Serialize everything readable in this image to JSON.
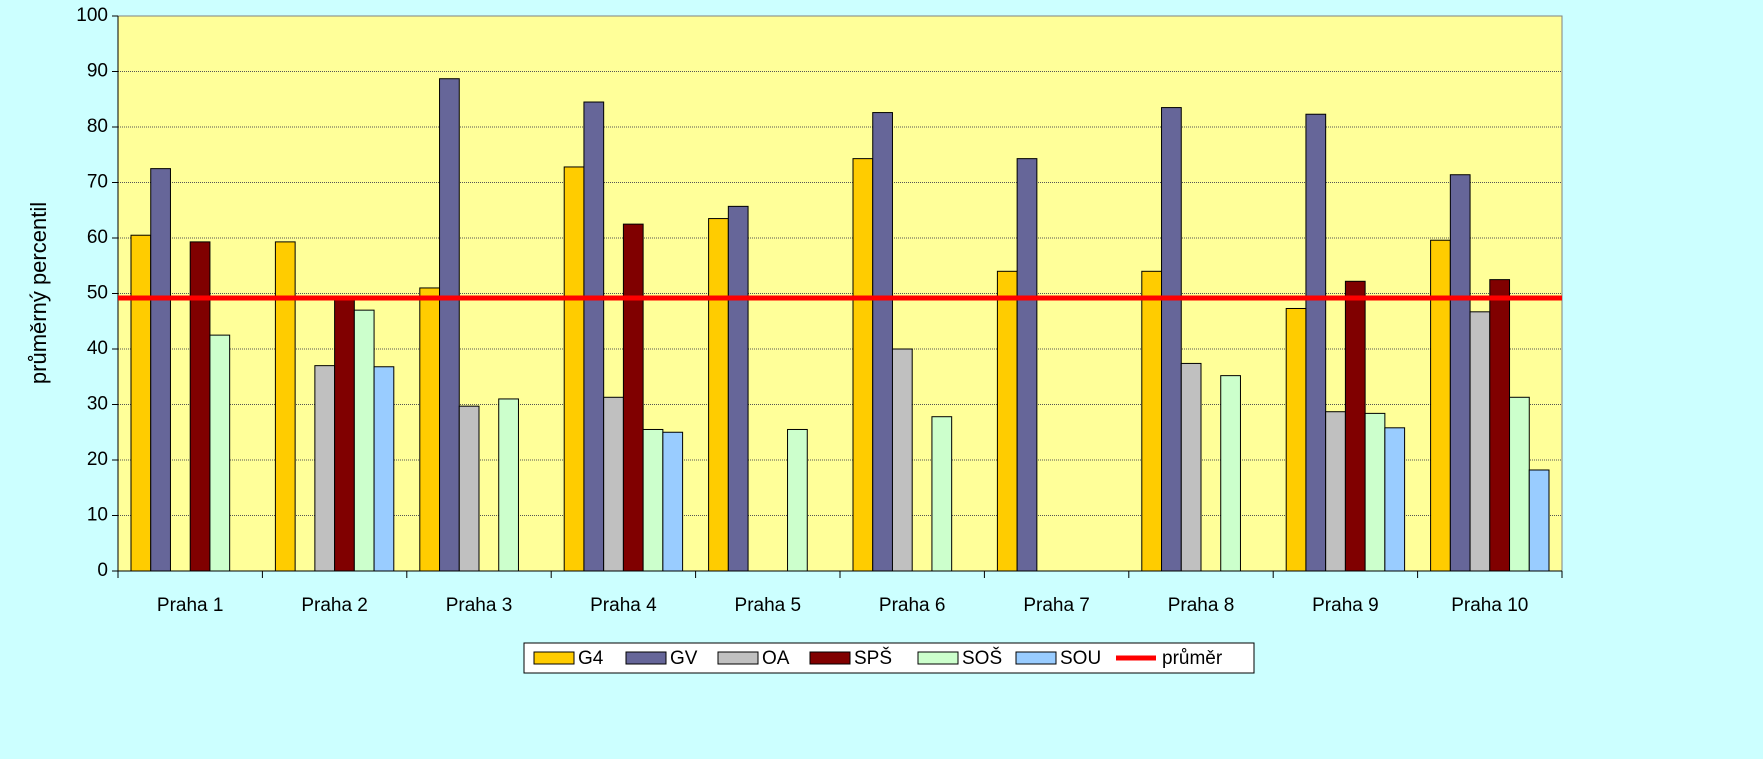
{
  "chart_data": {
    "type": "bar",
    "y_label": "průměrný percentil",
    "categories": [
      "Praha 1",
      "Praha 2",
      "Praha 3",
      "Praha 4",
      "Praha 5",
      "Praha 6",
      "Praha 7",
      "Praha 8",
      "Praha 9",
      "Praha 10"
    ],
    "series": [
      {
        "name": "G4",
        "color": "#FFCC00",
        "values": [
          60.5,
          59.3,
          51,
          72.8,
          63.5,
          74.3,
          54,
          54,
          47.3,
          59.6
        ]
      },
      {
        "name": "GV",
        "color": "#666699",
        "values": [
          72.5,
          null,
          88.7,
          84.5,
          65.7,
          82.6,
          74.3,
          83.5,
          82.3,
          71.4
        ]
      },
      {
        "name": "OA",
        "color": "#C0C0C0",
        "values": [
          null,
          37,
          29.7,
          31.3,
          null,
          40,
          null,
          37.4,
          28.7,
          46.7
        ]
      },
      {
        "name": "SPŠ",
        "color": "#800000",
        "values": [
          59.3,
          49,
          null,
          62.5,
          null,
          null,
          null,
          null,
          52.2,
          52.5
        ]
      },
      {
        "name": "SOŠ",
        "color": "#CCFFCC",
        "values": [
          42.5,
          47,
          31,
          25.5,
          25.5,
          27.8,
          null,
          35.2,
          28.4,
          31.3
        ]
      },
      {
        "name": "SOU",
        "color": "#99CCFF",
        "values": [
          null,
          36.8,
          null,
          25,
          null,
          null,
          null,
          null,
          25.8,
          18.2
        ]
      }
    ],
    "average": {
      "name": "průměr",
      "color": "#FF0000",
      "value": 49.2
    },
    "ylim": [
      0,
      100
    ],
    "yticks": [
      0,
      10,
      20,
      30,
      40,
      50,
      60,
      70,
      80,
      90,
      100
    ],
    "grid": true,
    "legend": "bottom"
  }
}
